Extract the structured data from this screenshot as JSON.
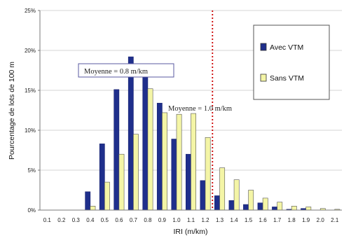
{
  "chart_data": {
    "type": "bar",
    "title": "",
    "xlabel": "IRI (m/km)",
    "ylabel": "Pourcentage de lots de 100 m",
    "ylim": [
      0,
      25
    ],
    "yticks": [
      "0%",
      "5%",
      "10%",
      "15%",
      "20%",
      "25%"
    ],
    "categories": [
      "0.1",
      "0.2",
      "0.3",
      "0.4",
      "0.5",
      "0.6",
      "0.7",
      "0.8",
      "0.9",
      "1.0",
      "1.1",
      "1.2",
      "1.3",
      "1.4",
      "1.5",
      "1.6",
      "1.7",
      "1.8",
      "1.9",
      "2.0",
      "2.1"
    ],
    "series": [
      {
        "name": "Avec VTM",
        "color": "#1f2f8c",
        "values": [
          0,
          0,
          0,
          2.3,
          8.3,
          15.1,
          19.2,
          17.9,
          13.4,
          8.9,
          7.0,
          3.7,
          1.8,
          1.2,
          0.7,
          0.9,
          0.4,
          0.1,
          0.2,
          0,
          0
        ]
      },
      {
        "name": "Sans VTM",
        "color": "#f4f5a6",
        "values": [
          0,
          0,
          0,
          0.5,
          3.5,
          7.0,
          9.5,
          15.2,
          12.2,
          12.0,
          12.1,
          9.1,
          5.3,
          3.8,
          2.5,
          1.5,
          1.0,
          0.5,
          0.4,
          0.2,
          0.1
        ]
      }
    ],
    "legend_position": "right",
    "grid": true,
    "annotations": [
      {
        "text": "Moyenne = 0.8 m/km"
      },
      {
        "text": "Moyenne = 1.0 m/km"
      }
    ],
    "reference_line": {
      "x": 1.25,
      "color": "#cc0000",
      "style": "dotted"
    }
  }
}
